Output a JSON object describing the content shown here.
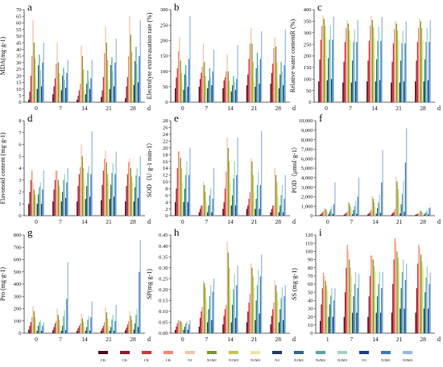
{
  "colors": [
    "#4a0d1c",
    "#8c1c2e",
    "#c73a3f",
    "#f08a70",
    "#f3c2a6",
    "#7a9a38",
    "#c7c44e",
    "#ebe69a",
    "#1d3a5c",
    "#2d6a7f",
    "#5aa5a6",
    "#9fd3c9",
    "#1e3f88",
    "#3d78bd",
    "#93b9df"
  ],
  "legend": {
    "labels": [
      "CK",
      "CK",
      "CK",
      "CK",
      "N1",
      "N1M1",
      "N1M3",
      "N1M3",
      "N2",
      "N1M1",
      "N2M2",
      "N2M3",
      "N3",
      "N3M1",
      "N3M3"
    ]
  },
  "chart_data": [
    {
      "id": "a",
      "letter": "a",
      "type": "bar",
      "orientation": "vertical",
      "ylabel": "MDA(mg·g-1)",
      "unit": "d",
      "categories": [
        "0",
        "7",
        "14",
        "21",
        "28"
      ],
      "ylim": [
        0,
        70
      ],
      "yticks": [
        0,
        5,
        10,
        15,
        20,
        25,
        30,
        35,
        40,
        45,
        50,
        55,
        60,
        65,
        70
      ],
      "groups": [
        {
          "values": [
            2,
            8,
            20,
            35,
            62,
            45,
            33,
            18,
            10,
            28,
            36,
            24,
            12,
            30,
            45
          ]
        },
        {
          "values": [
            6,
            12,
            18,
            29,
            45,
            30,
            22,
            14,
            9,
            20,
            26,
            17,
            11,
            22,
            32
          ]
        },
        {
          "values": [
            2,
            5,
            9,
            14,
            43,
            35,
            25,
            9,
            6,
            14,
            24,
            16,
            10,
            18,
            32
          ]
        },
        {
          "values": [
            4,
            9,
            19,
            37,
            57,
            45,
            32,
            16,
            10,
            28,
            34,
            24,
            12,
            30,
            48
          ]
        },
        {
          "values": [
            3,
            12,
            19,
            35,
            65,
            51,
            38,
            19,
            13,
            31,
            42,
            29,
            15,
            35,
            62
          ]
        }
      ]
    },
    {
      "id": "b",
      "letter": "b",
      "type": "bar",
      "orientation": "vertical",
      "ylabel": "Electrolyte extravasation rate (%)",
      "unit": "d",
      "categories": [
        "0",
        "7",
        "14",
        "21",
        "28"
      ],
      "ylim": [
        0,
        300
      ],
      "yticks": [
        0,
        50,
        100,
        150,
        200,
        250,
        300
      ],
      "groups": [
        {
          "values": [
            45,
            80,
            110,
            165,
            210,
            135,
            95,
            60,
            40,
            90,
            120,
            85,
            50,
            140,
            280
          ]
        },
        {
          "values": [
            50,
            75,
            95,
            115,
            190,
            130,
            85,
            55,
            45,
            70,
            110,
            80,
            55,
            100,
            170
          ]
        },
        {
          "values": [
            45,
            70,
            80,
            100,
            155,
            100,
            70,
            45,
            35,
            55,
            85,
            65,
            40,
            75,
            185
          ]
        },
        {
          "values": [
            55,
            90,
            140,
            190,
            240,
            190,
            130,
            70,
            50,
            110,
            160,
            120,
            60,
            140,
            230
          ]
        },
        {
          "values": [
            60,
            95,
            125,
            175,
            210,
            180,
            130,
            60,
            45,
            90,
            130,
            100,
            55,
            120,
            235
          ]
        }
      ]
    },
    {
      "id": "c",
      "letter": "c",
      "type": "bar",
      "orientation": "vertical",
      "ylabel": "Relative water contentR (%)",
      "unit": "d",
      "categories": [
        "0",
        "7",
        "14",
        "21",
        "28"
      ],
      "ylim": [
        0,
        400
      ],
      "yticks": [
        0,
        50,
        100,
        150,
        200,
        250,
        300,
        350,
        400
      ],
      "groups": [
        {
          "values": [
            90,
            185,
            270,
            330,
            375,
            360,
            330,
            280,
            95,
            190,
            270,
            330,
            100,
            270,
            370
          ]
        },
        {
          "values": [
            85,
            175,
            260,
            320,
            355,
            340,
            310,
            270,
            85,
            180,
            260,
            315,
            90,
            260,
            355
          ]
        },
        {
          "values": [
            90,
            180,
            265,
            330,
            372,
            355,
            325,
            280,
            90,
            185,
            265,
            325,
            95,
            265,
            368
          ]
        },
        {
          "values": [
            85,
            175,
            255,
            315,
            352,
            340,
            310,
            265,
            85,
            180,
            255,
            310,
            90,
            255,
            348
          ]
        },
        {
          "values": [
            90,
            180,
            260,
            320,
            360,
            350,
            320,
            270,
            90,
            185,
            260,
            320,
            95,
            260,
            355
          ]
        }
      ]
    },
    {
      "id": "d",
      "letter": "d",
      "type": "bar",
      "orientation": "vertical",
      "ylabel": "Flavonoid content (mg·g-1)",
      "unit": "d",
      "categories": [
        "0",
        "7",
        "14",
        "21",
        "28"
      ],
      "ylim": [
        0,
        8
      ],
      "yticks": [
        0,
        1,
        2,
        3,
        4,
        5,
        6,
        7,
        8
      ],
      "groups": [
        {
          "values": [
            1.0,
            2.0,
            3.0,
            3.8,
            2.8,
            2.2,
            1.8,
            1.5,
            1.0,
            1.8,
            2.4,
            2.8,
            1.0,
            2.2,
            3.8
          ]
        },
        {
          "values": [
            1.2,
            2.2,
            3.0,
            3.8,
            3.8,
            3.0,
            2.5,
            2.0,
            1.2,
            2.0,
            3.0,
            3.5,
            1.5,
            2.8,
            4.0
          ]
        },
        {
          "values": [
            1.2,
            2.5,
            3.5,
            4.1,
            6.0,
            5.0,
            4.0,
            3.0,
            1.4,
            2.5,
            3.6,
            4.2,
            1.6,
            3.5,
            7.1
          ]
        },
        {
          "values": [
            1.3,
            2.6,
            3.8,
            4.8,
            5.5,
            4.5,
            3.5,
            3.0,
            1.4,
            2.6,
            3.6,
            4.4,
            1.6,
            3.5,
            5.4
          ]
        },
        {
          "values": [
            1.2,
            2.5,
            3.5,
            4.5,
            4.8,
            4.0,
            3.3,
            2.8,
            1.2,
            2.4,
            3.4,
            4.0,
            1.5,
            3.3,
            5.0
          ]
        }
      ]
    },
    {
      "id": "e",
      "letter": "e",
      "type": "bar",
      "orientation": "vertical",
      "ylabel": "SOD（U·g-1 min-1）",
      "unit": "d",
      "categories": [
        "0",
        "7",
        "14",
        "21",
        "28"
      ],
      "ylim": [
        0,
        28
      ],
      "yticks": [
        0,
        2,
        4,
        6,
        8,
        10,
        12,
        14,
        16,
        18,
        20,
        22,
        24,
        26,
        28
      ],
      "groups": [
        {
          "values": [
            4,
            8,
            14,
            19,
            19,
            17,
            14,
            10,
            4,
            8,
            12,
            16,
            4,
            12,
            20
          ]
        },
        {
          "values": [
            1,
            2,
            3,
            3,
            10,
            9,
            7,
            4,
            1,
            3,
            6,
            8,
            1,
            5,
            14
          ]
        },
        {
          "values": [
            2,
            4,
            8,
            13,
            23,
            20,
            16,
            10,
            3,
            6,
            11,
            16,
            3,
            12,
            23
          ]
        },
        {
          "values": [
            2,
            3,
            5,
            7,
            17,
            16,
            12,
            7,
            2,
            5,
            9,
            13,
            2,
            9,
            25
          ]
        },
        {
          "values": [
            1,
            2,
            3,
            3,
            14,
            12,
            10,
            6,
            1,
            3,
            6,
            9,
            1,
            5,
            12
          ]
        }
      ]
    },
    {
      "id": "f",
      "letter": "f",
      "type": "bar",
      "orientation": "vertical",
      "ylabel": "POD（μmol·g-1）",
      "unit": "d",
      "categories": [
        "0",
        "7",
        "14",
        "21",
        "28"
      ],
      "ylim": [
        0,
        10000
      ],
      "yticks": [
        0,
        1000,
        2000,
        3000,
        4000,
        5000,
        6000,
        7000,
        8000,
        9000,
        10000
      ],
      "groups": [
        {
          "values": [
            100,
            200,
            350,
            500,
            800,
            700,
            600,
            400,
            150,
            400,
            700,
            1000,
            200,
            1200,
            3500
          ]
        },
        {
          "values": [
            100,
            200,
            300,
            450,
            1500,
            1300,
            1000,
            700,
            150,
            600,
            1000,
            1600,
            200,
            2000,
            4000
          ]
        },
        {
          "values": [
            150,
            250,
            400,
            600,
            2100,
            1800,
            1400,
            900,
            200,
            800,
            1400,
            2200,
            300,
            3500,
            6900
          ]
        },
        {
          "values": [
            150,
            300,
            400,
            700,
            4100,
            3600,
            2800,
            1800,
            250,
            1200,
            2300,
            3600,
            400,
            5600,
            9200
          ]
        },
        {
          "values": [
            100,
            150,
            200,
            300,
            600,
            500,
            400,
            300,
            100,
            250,
            400,
            600,
            150,
            800,
            900
          ]
        }
      ]
    },
    {
      "id": "g",
      "letter": "g",
      "type": "bar",
      "orientation": "vertical",
      "ylabel": "Pro (mg·g-1)",
      "unit": "d",
      "categories": [
        "0",
        "7",
        "14",
        "21",
        "28"
      ],
      "ylim": [
        0,
        800
      ],
      "yticks": [
        0,
        100,
        200,
        300,
        400,
        500,
        600,
        700,
        800
      ],
      "groups": [
        {
          "values": [
            30,
            60,
            90,
            130,
            220,
            180,
            130,
            70,
            20,
            60,
            90,
            110,
            20,
            60,
            90
          ]
        },
        {
          "values": [
            25,
            50,
            80,
            100,
            200,
            150,
            110,
            60,
            20,
            60,
            140,
            190,
            25,
            280,
            580
          ]
        },
        {
          "values": [
            20,
            40,
            60,
            80,
            160,
            120,
            90,
            50,
            20,
            50,
            110,
            140,
            20,
            130,
            260
          ]
        },
        {
          "values": [
            20,
            40,
            60,
            90,
            210,
            170,
            120,
            60,
            20,
            50,
            110,
            150,
            20,
            100,
            230
          ]
        },
        {
          "values": [
            25,
            45,
            70,
            100,
            180,
            140,
            110,
            60,
            30,
            80,
            150,
            200,
            50,
            500,
            760
          ]
        }
      ]
    },
    {
      "id": "h",
      "letter": "h",
      "type": "bar",
      "orientation": "vertical",
      "ylabel": "SP(mg·g-1)",
      "unit": "d",
      "categories": [
        "0",
        "7",
        "14",
        "21",
        "28"
      ],
      "ylim": [
        0,
        0.45
      ],
      "yticks": [
        0,
        0.05,
        0.1,
        0.15,
        0.2,
        0.25,
        0.3,
        0.35,
        0.4,
        0.45
      ],
      "ytick_labels": [
        "0.00",
        "0.05",
        "0.10",
        "0.15",
        "0.20",
        "0.25",
        "0.30",
        "0.35",
        "0.40",
        "0.45"
      ],
      "groups": [
        {
          "values": [
            0.015,
            0.03,
            0.045,
            0.06,
            0.06,
            0.055,
            0.05,
            0.04,
            0.015,
            0.03,
            0.045,
            0.055,
            0.015,
            0.04,
            0.06
          ]
        },
        {
          "values": [
            0.03,
            0.07,
            0.1,
            0.12,
            0.24,
            0.23,
            0.21,
            0.15,
            0.05,
            0.11,
            0.17,
            0.22,
            0.06,
            0.19,
            0.25
          ]
        },
        {
          "values": [
            0.04,
            0.08,
            0.11,
            0.13,
            0.42,
            0.37,
            0.3,
            0.2,
            0.05,
            0.13,
            0.2,
            0.27,
            0.07,
            0.22,
            0.31
          ]
        },
        {
          "values": [
            0.05,
            0.1,
            0.14,
            0.18,
            0.32,
            0.3,
            0.26,
            0.21,
            0.06,
            0.15,
            0.22,
            0.29,
            0.09,
            0.26,
            0.36
          ]
        },
        {
          "values": [
            0.04,
            0.08,
            0.11,
            0.14,
            0.24,
            0.22,
            0.19,
            0.15,
            0.05,
            0.11,
            0.16,
            0.21,
            0.06,
            0.17,
            0.22
          ]
        }
      ]
    },
    {
      "id": "i",
      "letter": "i",
      "type": "bar",
      "orientation": "vertical",
      "ylabel": "SS (mg·g-1)",
      "unit": "d",
      "categories": [
        "1",
        "7",
        "14",
        "21",
        "28"
      ],
      "ylim": [
        0,
        120
      ],
      "yticks": [
        0,
        10,
        20,
        30,
        40,
        50,
        60,
        70,
        80,
        90,
        100,
        110,
        120
      ],
      "groups": [
        {
          "values": [
            15,
            35,
            55,
            74,
            70,
            64,
            58,
            52,
            20,
            35,
            46,
            55,
            20,
            40,
            55
          ]
        },
        {
          "values": [
            20,
            50,
            80,
            108,
            100,
            90,
            80,
            70,
            25,
            45,
            60,
            75,
            25,
            55,
            72
          ]
        },
        {
          "values": [
            20,
            45,
            70,
            95,
            95,
            90,
            82,
            75,
            25,
            45,
            60,
            75,
            25,
            55,
            75
          ]
        },
        {
          "values": [
            25,
            60,
            90,
            116,
            110,
            100,
            92,
            85,
            30,
            55,
            75,
            90,
            30,
            65,
            85
          ]
        },
        {
          "values": [
            25,
            55,
            85,
            108,
            104,
            96,
            88,
            80,
            30,
            50,
            68,
            82,
            30,
            60,
            74
          ]
        }
      ]
    }
  ]
}
